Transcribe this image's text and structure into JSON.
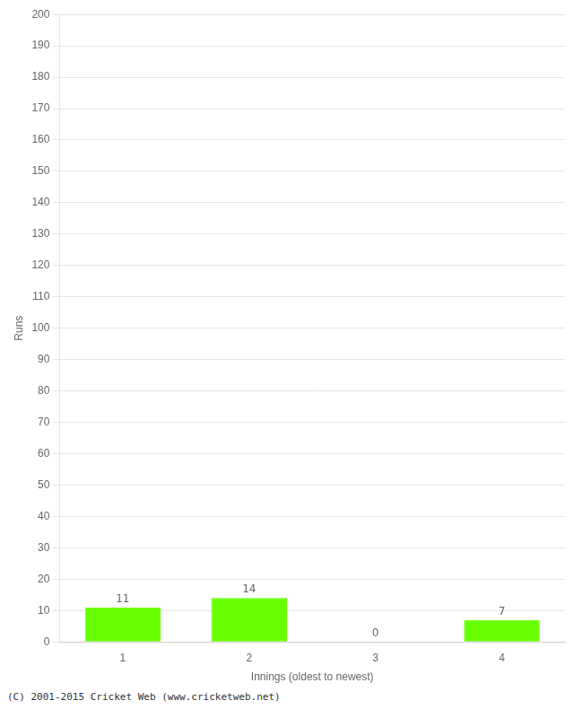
{
  "chart_data": {
    "type": "bar",
    "categories": [
      "1",
      "2",
      "3",
      "4"
    ],
    "values": [
      11,
      14,
      0,
      7
    ],
    "color": "#66ff00",
    "x_label": "Innings (oldest to newest)",
    "y_label": "Runs",
    "ylim": [
      0,
      200
    ],
    "yticks": [
      0,
      10,
      20,
      30,
      40,
      50,
      60,
      70,
      80,
      90,
      100,
      110,
      120,
      130,
      140,
      150,
      160,
      170,
      180,
      190,
      200
    ],
    "grid": true,
    "data_labels": true,
    "footer": "(C) 2001-2015 Cricket Web (www.cricketweb.net)"
  }
}
